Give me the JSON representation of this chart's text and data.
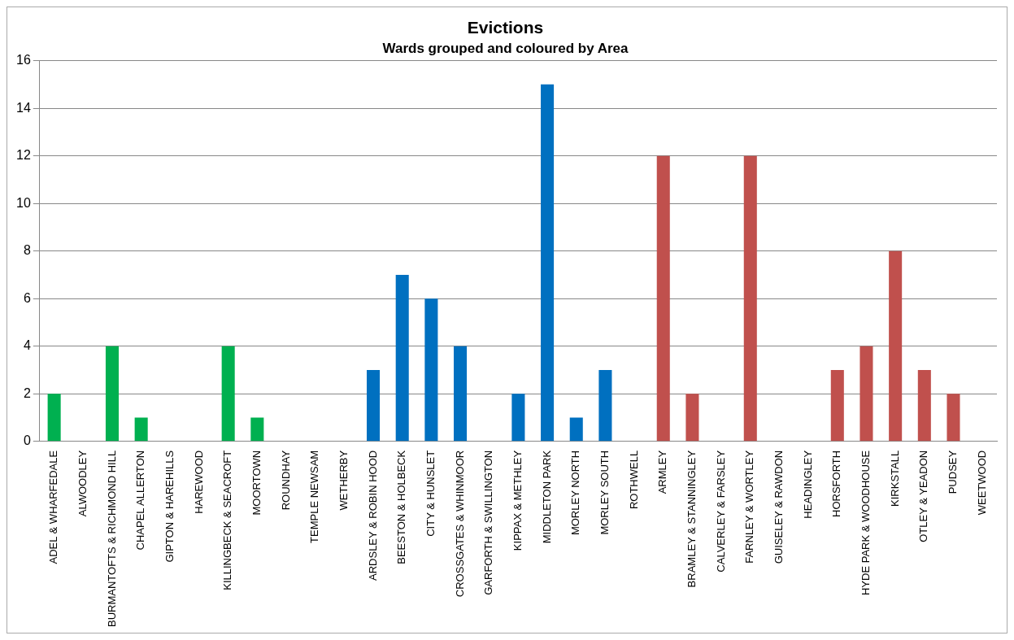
{
  "chart_data": {
    "type": "bar",
    "title": "Evictions",
    "subtitle": "Wards grouped and coloured by Area",
    "categories": [
      "ADEL & WHARFEDALE",
      "ALWOODLEY",
      "BURMANTOFTS & RICHMOND HILL",
      "CHAPEL ALLERTON",
      "GIPTON & HAREHILLS",
      "HAREWOOD",
      "KILLINGBECK & SEACROFT",
      "MOORTOWN",
      "ROUNDHAY",
      "TEMPLE NEWSAM",
      "WETHERBY",
      "ARDSLEY & ROBIN HOOD",
      "BEESTON & HOLBECK",
      "CITY & HUNSLET",
      "CROSSGATES & WHINMOOR",
      "GARFORTH & SWILLINGTON",
      "KIPPAX & METHLEY",
      "MIDDLETON PARK",
      "MORLEY NORTH",
      "MORLEY SOUTH",
      "ROTHWELL",
      "ARMLEY",
      "BRAMLEY & STANNINGLEY",
      "CALVERLEY & FARSLEY",
      "FARNLEY & WORTLEY",
      "GUISELEY & RAWDON",
      "HEADINGLEY",
      "HORSFORTH",
      "HYDE PARK & WOODHOUSE",
      "KIRKSTALL",
      "OTLEY & YEADON",
      "PUDSEY",
      "WEETWOOD"
    ],
    "values": [
      2,
      0,
      4,
      1,
      0,
      0,
      4,
      1,
      0,
      0,
      0,
      3,
      7,
      6,
      4,
      0,
      2,
      15,
      1,
      3,
      0,
      12,
      2,
      0,
      12,
      0,
      0,
      3,
      4,
      8,
      3,
      2,
      0
    ],
    "colors": [
      "#00b050",
      "#00b050",
      "#00b050",
      "#00b050",
      "#00b050",
      "#00b050",
      "#00b050",
      "#00b050",
      "#00b050",
      "#00b050",
      "#00b050",
      "#0070c0",
      "#0070c0",
      "#0070c0",
      "#0070c0",
      "#0070c0",
      "#0070c0",
      "#0070c0",
      "#0070c0",
      "#0070c0",
      "#0070c0",
      "#c0504d",
      "#c0504d",
      "#c0504d",
      "#c0504d",
      "#c0504d",
      "#c0504d",
      "#c0504d",
      "#c0504d",
      "#c0504d",
      "#c0504d",
      "#c0504d",
      "#c0504d"
    ],
    "ylim": [
      0,
      16
    ],
    "yticks": [
      0,
      2,
      4,
      6,
      8,
      10,
      12,
      14,
      16
    ],
    "grid": "y"
  }
}
